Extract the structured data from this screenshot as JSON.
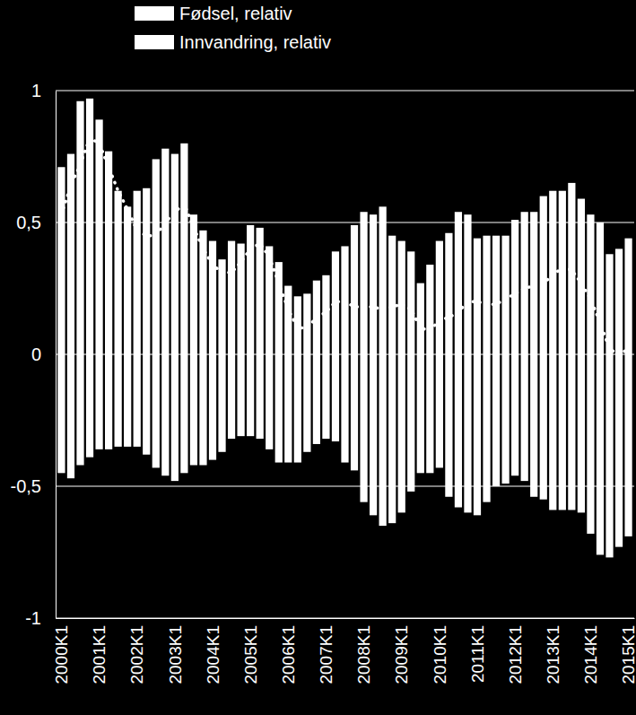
{
  "chart_data": {
    "type": "bar",
    "stacked": true,
    "grid": true,
    "legend": "top",
    "categories": [
      "2000K1",
      null,
      null,
      null,
      "2001K1",
      null,
      null,
      null,
      "2002K1",
      null,
      null,
      null,
      "2003K1",
      null,
      null,
      null,
      "2004K1",
      null,
      null,
      null,
      "2005K1",
      null,
      null,
      null,
      "2006K1",
      null,
      null,
      null,
      "2007K1",
      null,
      null,
      null,
      "2008K1",
      null,
      null,
      null,
      "2009K1",
      null,
      null,
      null,
      "2010K1",
      null,
      null,
      null,
      "2011K1",
      null,
      null,
      null,
      "2012K1",
      null,
      null,
      null,
      "2013K1",
      null,
      null,
      null,
      "2014K1",
      null,
      null,
      null,
      "2015K1"
    ],
    "series": [
      {
        "name": "Fødsel, relativ",
        "color": "#ffffff",
        "values": [
          0.71,
          0.76,
          0.96,
          0.97,
          0.89,
          0.77,
          0.62,
          0.56,
          0.62,
          0.63,
          0.74,
          0.78,
          0.76,
          0.8,
          0.53,
          0.47,
          0.43,
          0.36,
          0.43,
          0.42,
          0.49,
          0.48,
          0.41,
          0.35,
          0.26,
          0.22,
          0.23,
          0.28,
          0.3,
          0.39,
          0.41,
          0.49,
          0.54,
          0.53,
          0.56,
          0.45,
          0.43,
          0.39,
          0.27,
          0.34,
          0.43,
          0.46,
          0.54,
          0.53,
          0.44,
          0.45,
          0.45,
          0.45,
          0.51,
          0.54,
          0.54,
          0.6,
          0.62,
          0.62,
          0.65,
          0.59,
          0.53,
          0.5,
          0.38,
          0.4,
          0.44
        ]
      },
      {
        "name": "Innvandring, relativ",
        "color": "#ffffff",
        "values": [
          -0.45,
          -0.47,
          -0.42,
          -0.39,
          -0.36,
          -0.36,
          -0.35,
          -0.35,
          -0.35,
          -0.38,
          -0.43,
          -0.46,
          -0.48,
          -0.45,
          -0.42,
          -0.42,
          -0.4,
          -0.37,
          -0.32,
          -0.31,
          -0.31,
          -0.32,
          -0.36,
          -0.41,
          -0.41,
          -0.41,
          -0.37,
          -0.34,
          -0.32,
          -0.33,
          -0.41,
          -0.44,
          -0.56,
          -0.61,
          -0.65,
          -0.64,
          -0.6,
          -0.52,
          -0.45,
          -0.45,
          -0.43,
          -0.54,
          -0.58,
          -0.6,
          -0.61,
          -0.56,
          -0.5,
          -0.49,
          -0.46,
          -0.48,
          -0.54,
          -0.55,
          -0.59,
          -0.59,
          -0.59,
          -0.6,
          -0.68,
          -0.76,
          -0.77,
          -0.73,
          -0.69
        ]
      },
      {
        "type": "line",
        "line_style": "dotted",
        "color": "#ffffff",
        "values": [
          0.53,
          0.64,
          0.72,
          0.82,
          0.8,
          0.71,
          0.62,
          0.55,
          0.47,
          0.45,
          0.45,
          0.5,
          0.54,
          0.57,
          0.48,
          0.4,
          0.34,
          0.31,
          0.31,
          0.35,
          0.4,
          0.42,
          0.37,
          0.27,
          0.17,
          0.1,
          0.1,
          0.14,
          0.16,
          0.2,
          0.2,
          0.18,
          0.18,
          0.18,
          0.17,
          0.18,
          0.19,
          0.17,
          0.1,
          0.09,
          0.13,
          0.14,
          0.16,
          0.2,
          0.2,
          0.19,
          0.19,
          0.21,
          0.23,
          0.25,
          0.26,
          0.27,
          0.3,
          0.33,
          0.32,
          0.27,
          0.21,
          0.12,
          0.02,
          0.0,
          0.02
        ]
      }
    ],
    "ylim": [
      -1,
      1
    ],
    "yticks": [
      -1,
      {
        "value": -0.5,
        "label": "-0,5"
      },
      0,
      {
        "value": 0.5,
        "label": "0,5"
      },
      1
    ]
  }
}
